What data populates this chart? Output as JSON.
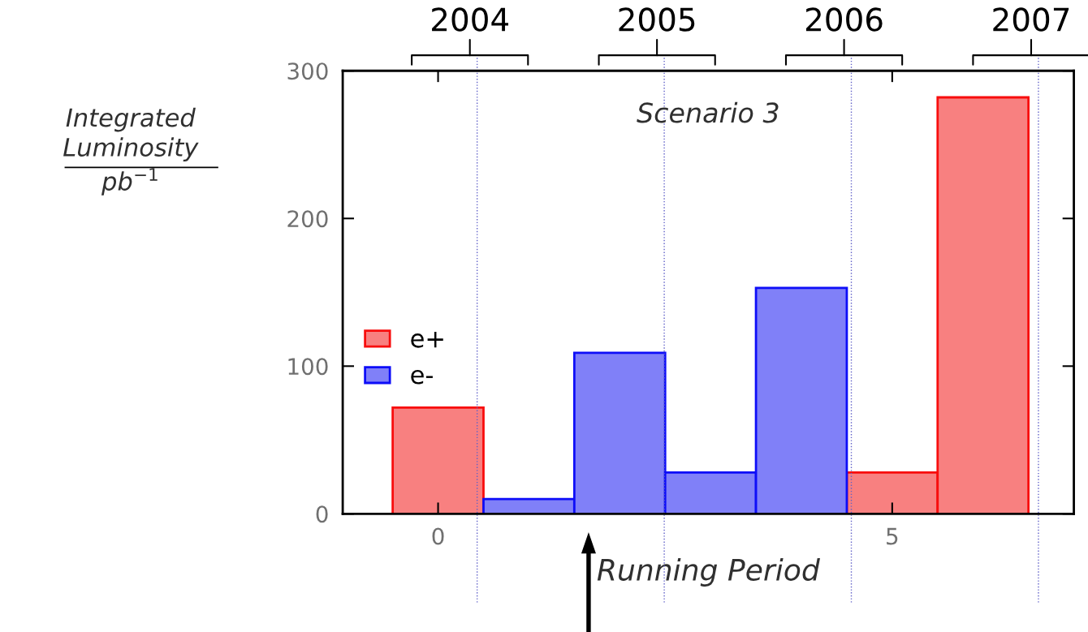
{
  "chart_data": {
    "type": "bar",
    "title": "Scenario 3",
    "xlabel": "Running Period",
    "ylabel": "Integrated\nLuminosity\npb$^{−1}$",
    "x": [
      0,
      1,
      2,
      3,
      4,
      5,
      6
    ],
    "series": [
      {
        "name": "e+",
        "color": "#f88080",
        "values": [
          72,
          null,
          null,
          null,
          null,
          28,
          282
        ]
      },
      {
        "name": "e-",
        "color": "#8080f8",
        "values": [
          null,
          10,
          109,
          28,
          153,
          null,
          null
        ]
      }
    ],
    "xlim": [
      -1.05,
      7.0
    ],
    "xticks": [
      0,
      5
    ],
    "ylim": [
      0,
      300
    ],
    "yticks": [
      0,
      100,
      200,
      300
    ],
    "annotations": [
      "2004",
      "2005",
      "2006",
      "2007"
    ],
    "ref_lines": [
      {
        "axis": "x",
        "value": 0.43,
        "color": "#6060c8",
        "line_style": "dotted"
      },
      {
        "axis": "x",
        "value": 2.49,
        "color": "#6060c8",
        "line_style": "dotted"
      },
      {
        "axis": "x",
        "value": 4.55,
        "color": "#6060c8",
        "line_style": "dotted"
      },
      {
        "axis": "x",
        "value": 6.61,
        "color": "#6060c8",
        "line_style": "dotted"
      }
    ],
    "legend": "center left",
    "grid": false
  }
}
